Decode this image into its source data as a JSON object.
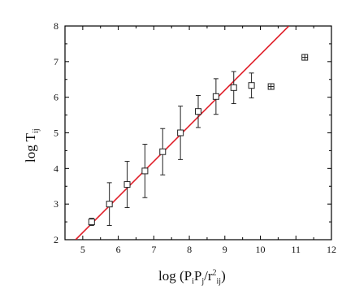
{
  "chart_data": {
    "type": "scatter",
    "xlim": [
      4.5,
      12
    ],
    "ylim": [
      2,
      8
    ],
    "xticks": [
      5,
      6,
      7,
      8,
      9,
      10,
      11,
      12
    ],
    "yticks": [
      2,
      3,
      4,
      5,
      6,
      7,
      8
    ],
    "xlabel": {
      "prefix": "log (P",
      "sub1": "i",
      "mid": "P",
      "sub2": "j",
      "slash": "/r",
      "sup": "2",
      "sub3": "ij",
      "suffix": ")"
    },
    "ylabel": {
      "prefix": "log T",
      "sub": "ij"
    },
    "grid": false,
    "colors": {
      "fit_line": "#e0202a",
      "points": "#222222",
      "frame": "#000000"
    },
    "series": [
      {
        "marker": "open-square",
        "points": [
          {
            "x": 5.25,
            "y": 2.5,
            "yerr": 0.1
          },
          {
            "x": 5.75,
            "y": 3.0,
            "yerr": 0.6
          },
          {
            "x": 6.25,
            "y": 3.55,
            "yerr": 0.65
          },
          {
            "x": 6.75,
            "y": 3.93,
            "yerr": 0.75
          },
          {
            "x": 7.25,
            "y": 4.47,
            "yerr": 0.65
          },
          {
            "x": 7.75,
            "y": 5.0,
            "yerr": 0.75
          },
          {
            "x": 8.25,
            "y": 5.6,
            "yerr": 0.45
          },
          {
            "x": 8.75,
            "y": 6.02,
            "yerr": 0.5
          },
          {
            "x": 9.25,
            "y": 6.27,
            "yerr": 0.45
          },
          {
            "x": 9.75,
            "y": 6.33,
            "yerr": 0.35
          }
        ]
      },
      {
        "marker": "crossed-square",
        "points": [
          {
            "x": 10.3,
            "y": 6.3
          },
          {
            "x": 11.25,
            "y": 7.12
          }
        ]
      }
    ],
    "fit_line": {
      "x": [
        4.8,
        10.8
      ],
      "y": [
        2.0,
        8.0
      ]
    }
  }
}
